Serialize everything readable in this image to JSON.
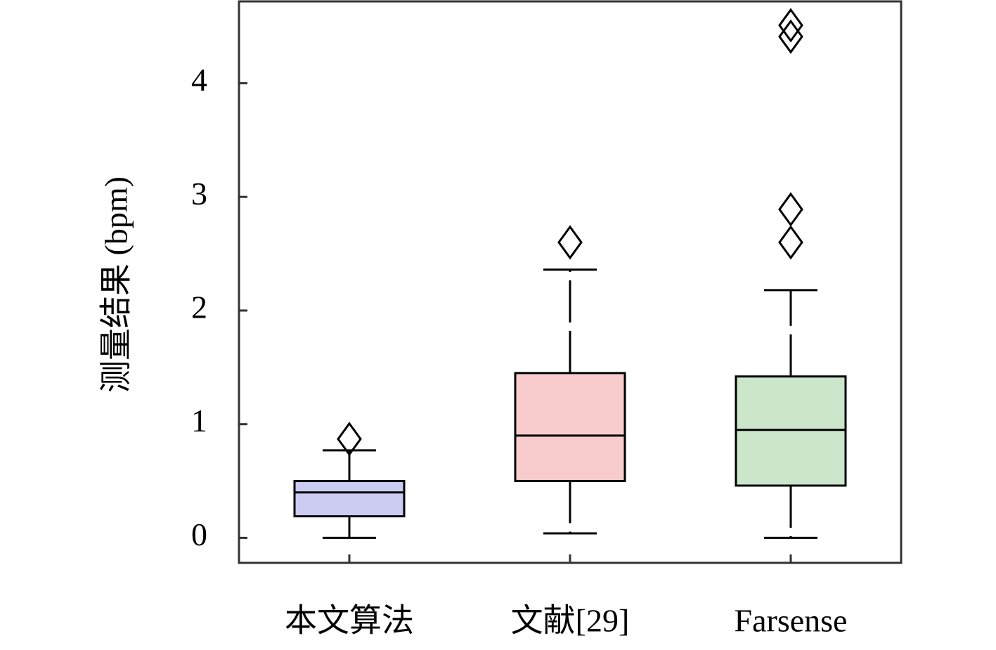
{
  "chart_data": {
    "type": "box",
    "y_label": "测量结果 (bpm)",
    "categories": [
      "本文算法",
      "文献[29]",
      "Farsense"
    ],
    "colors": [
      "#ccccf2",
      "#f8cccc",
      "#cce6cc"
    ],
    "boxes": [
      {
        "low": 0,
        "q1": 0.19,
        "median": 0.4,
        "q3": 0.5,
        "high": 0.77,
        "outliers": [
          0.87
        ]
      },
      {
        "low": 0.04,
        "q1": 0.5,
        "median": 0.9,
        "q3": 1.45,
        "high": 2.36,
        "outliers": [
          2.6
        ]
      },
      {
        "low": 0,
        "q1": 0.46,
        "median": 0.95,
        "q3": 1.42,
        "high": 2.18,
        "outliers": [
          2.6,
          2.89,
          4.41,
          4.51
        ]
      }
    ],
    "ylim": [
      -0.22,
      4.72
    ],
    "yticks": [
      0,
      1,
      2,
      3,
      4
    ]
  }
}
